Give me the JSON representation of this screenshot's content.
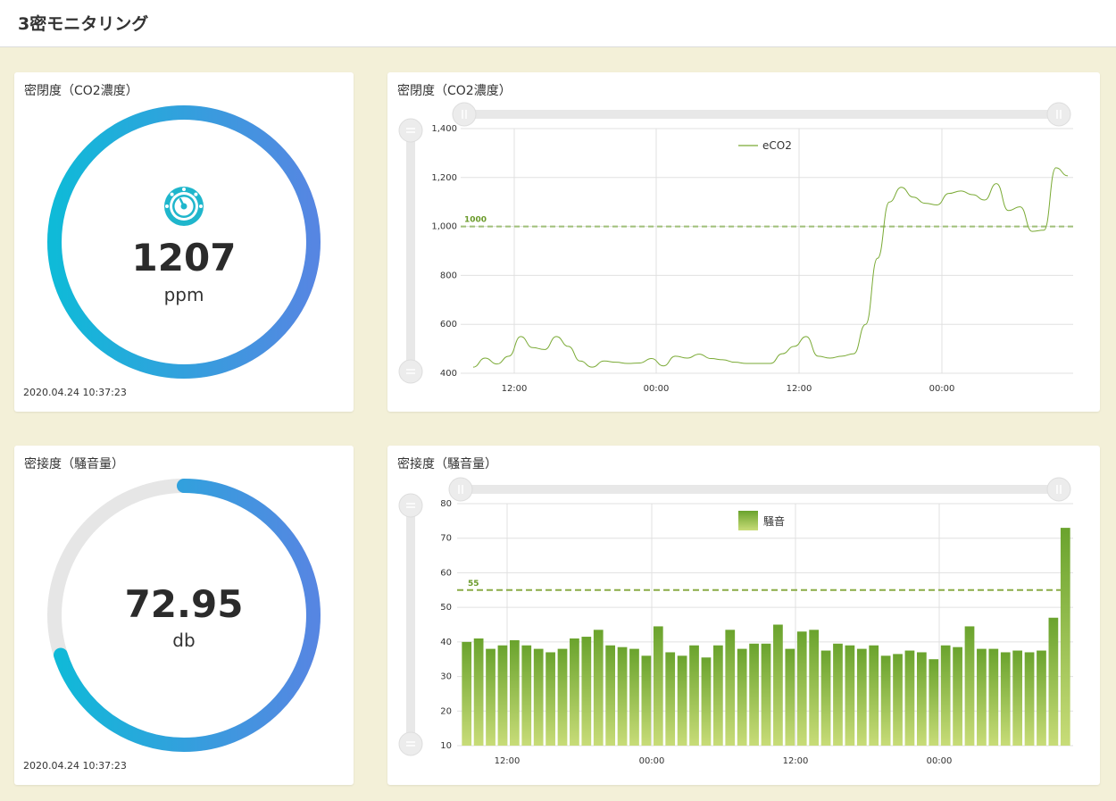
{
  "header": {
    "title": "3密モニタリング"
  },
  "co2_gauge": {
    "title": "密閉度（CO2濃度）",
    "value": "1207",
    "unit": "ppm",
    "icon": "speedometer-icon",
    "timestamp": "2020.04.24 10:37:23",
    "fill_fraction": 1.0
  },
  "noise_gauge": {
    "title": "密接度（騒音量）",
    "value": "72.95",
    "unit": "db",
    "timestamp": "2020.04.24 10:37:23",
    "fill_fraction": 0.7
  },
  "co2_chart": {
    "title": "密閉度（CO2濃度）",
    "chart_data": {
      "type": "line",
      "series": [
        {
          "name": "eCO2",
          "values": [
            425,
            462,
            438,
            470,
            550,
            505,
            497,
            550,
            510,
            450,
            425,
            450,
            445,
            440,
            442,
            460,
            430,
            470,
            462,
            478,
            460,
            455,
            445,
            440,
            440,
            440,
            480,
            510,
            550,
            470,
            462,
            470,
            480,
            600,
            870,
            1100,
            1160,
            1120,
            1095,
            1088,
            1135,
            1145,
            1130,
            1108,
            1175,
            1065,
            1080,
            980,
            985,
            1240,
            1207
          ]
        }
      ],
      "x_ticks": [
        "12:00",
        "00:00",
        "12:00",
        "00:00"
      ],
      "y_ticks": [
        "400",
        "600",
        "800",
        "1,000",
        "1,200",
        "1,400"
      ],
      "ylim": [
        400,
        1400
      ],
      "threshold": {
        "label": "1000",
        "value": 1000
      },
      "color": "#7aaa35"
    }
  },
  "noise_chart": {
    "title": "密接度（騒音量）",
    "chart_data": {
      "type": "bar",
      "series": [
        {
          "name": "騒音",
          "values": [
            40,
            41,
            38,
            39,
            40.5,
            39,
            38,
            37,
            38,
            41,
            41.5,
            43.5,
            39,
            38.5,
            38,
            36,
            44.5,
            37,
            36,
            39,
            35.5,
            39,
            43.5,
            38,
            39.5,
            39.5,
            45,
            38,
            43,
            43.5,
            37.5,
            39.5,
            39,
            38,
            39,
            36,
            36.5,
            37.5,
            37,
            35,
            39,
            38.5,
            44.5,
            38,
            38,
            37,
            37.5,
            37,
            37.5,
            47,
            73
          ]
        }
      ],
      "x_ticks": [
        "12:00",
        "00:00",
        "12:00",
        "00:00"
      ],
      "y_ticks": [
        "10",
        "20",
        "30",
        "40",
        "50",
        "60",
        "70",
        "80"
      ],
      "ylim": [
        10,
        80
      ],
      "threshold": {
        "label": "55",
        "value": 55
      },
      "color_top": "#6aa32d",
      "color_bottom": "#c8dc78"
    }
  }
}
